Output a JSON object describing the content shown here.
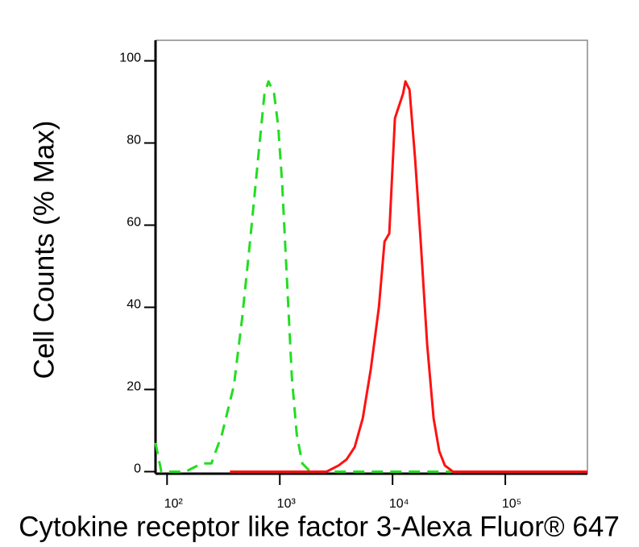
{
  "chart_data": {
    "type": "line",
    "x_label": "Cytokine receptor like factor 3-Alexa Fluor® 647",
    "y_label": "Cell Counts (% Max)",
    "log_x": true,
    "xlim": [
      79,
      535000
    ],
    "ylim": [
      -0.5,
      105
    ],
    "xticks": [
      {
        "value": 100,
        "label": "10²"
      },
      {
        "value": 1000,
        "label": "10³"
      },
      {
        "value": 10000,
        "label": "10⁴"
      },
      {
        "value": 100000,
        "label": "10⁵"
      }
    ],
    "yticks": [
      0,
      20,
      40,
      60,
      80,
      100
    ],
    "series": [
      {
        "color": "#22dd22",
        "dash": true,
        "x": [
          79,
          89,
          146,
          203,
          247,
          306,
          392,
          462,
          544,
          641,
          731,
          794,
          891,
          968,
          1050,
          1160,
          1280,
          1413,
          1585,
          1868,
          535000
        ],
        "values": [
          7,
          0,
          0,
          2,
          2,
          9,
          21,
          37,
          56,
          76,
          92,
          95,
          92,
          84,
          70,
          46,
          23,
          9,
          2,
          0,
          0
        ]
      },
      {
        "color": "#ff1111",
        "dash": false,
        "x": [
          361,
          2596,
          3321,
          3917,
          4613,
          5445,
          6412,
          7568,
          8491,
          9354,
          10500,
          11400,
          12390,
          13000,
          14130,
          15850,
          17780,
          20280,
          23120,
          25960,
          29130,
          34350,
          535000
        ],
        "values": [
          0,
          0,
          1.5,
          3,
          6,
          13,
          25,
          40,
          56,
          58,
          86,
          89,
          92,
          95,
          93,
          76,
          56,
          31,
          13,
          5,
          1.5,
          0,
          0
        ]
      }
    ]
  }
}
